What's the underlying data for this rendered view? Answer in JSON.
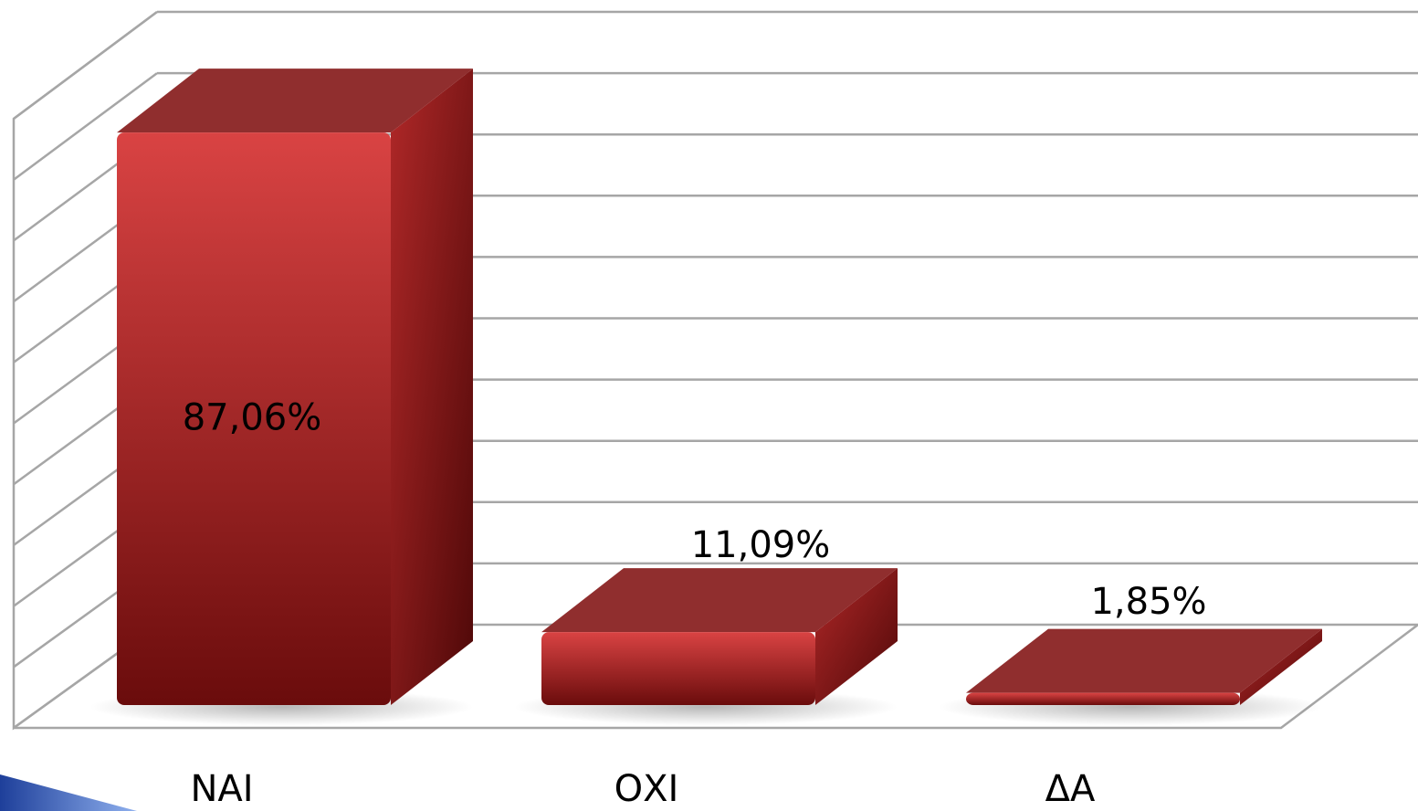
{
  "chart_data": {
    "type": "bar",
    "style": "3d-column",
    "categories": [
      "ΝΑΙ",
      "ΟΧΙ",
      "ΔΑ"
    ],
    "values": [
      87.06,
      11.09,
      1.85
    ],
    "data_labels": [
      "87,06%",
      "11,09%",
      "1,85%"
    ],
    "title": "",
    "xlabel": "",
    "ylabel": "",
    "ylim": [
      0,
      100
    ],
    "grid": true,
    "legend": "none"
  },
  "colors": {
    "bar_front_light": "#d94343",
    "bar_front_dark": "#6a0c0c",
    "bar_top": "#902e2e",
    "bar_side": "#7a1414",
    "gridline": "#a6a6a6",
    "background": "#ffffff",
    "slide_accent": "#3b64c4"
  }
}
